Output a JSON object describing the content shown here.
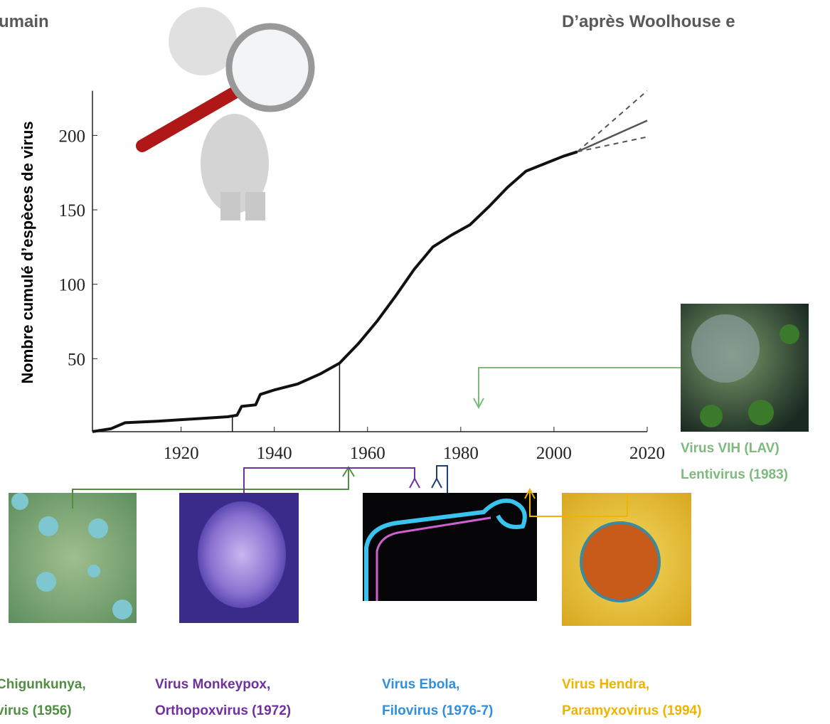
{
  "header": {
    "left": "umain",
    "right": "D’après Woolhouse e"
  },
  "chart_data": {
    "type": "line",
    "y_label": "Nombre cumulé d’espèces de virus",
    "x": [
      1901,
      1905,
      1908,
      1915,
      1920,
      1925,
      1930,
      1932,
      1933,
      1936,
      1937,
      1940,
      1945,
      1950,
      1954,
      1958,
      1962,
      1966,
      1970,
      1974,
      1978,
      1982,
      1986,
      1990,
      1994,
      1998,
      2002,
      2005
    ],
    "values": [
      1,
      3,
      7,
      8,
      9,
      10,
      11,
      12,
      18,
      19,
      26,
      29,
      33,
      40,
      47,
      60,
      75,
      92,
      110,
      125,
      133,
      140,
      152,
      165,
      176,
      181,
      186,
      189
    ],
    "color": "#111111",
    "projection": {
      "x": [
        2005,
        2020
      ],
      "values": [
        189,
        210
      ],
      "upper": [
        189,
        230
      ],
      "lower": [
        189,
        199
      ],
      "color": "#555555"
    },
    "highlights": [
      {
        "x": 1931,
        "value": 12
      },
      {
        "x": 1954,
        "value": 47
      }
    ],
    "xlim": [
      1900,
      2020
    ],
    "ylim": [
      0,
      230
    ],
    "xticks": [
      1920,
      1940,
      1960,
      1980,
      2000,
      2020
    ],
    "yticks": [
      50,
      100,
      150,
      200
    ]
  },
  "viruses": [
    {
      "lines": [
        "Chigunkunya,",
        "virus (1956)"
      ],
      "color": "#4f8f3f"
    },
    {
      "lines": [
        "Virus Monkeypox,",
        "Orthopoxvirus (1972)"
      ],
      "color": "#7030a0"
    },
    {
      "lines": [
        "Virus Ebola,",
        "Filovirus (1976-7)"
      ],
      "color": "#2e8fdf"
    },
    {
      "lines": [
        "Virus Hendra,",
        "Paramyxovirus (1994)"
      ],
      "color": "#f0b400"
    },
    {
      "lines": [
        "Virus VIH (LAV)",
        "Lentivirus (1983)"
      ],
      "color": "#7dba7d"
    }
  ]
}
